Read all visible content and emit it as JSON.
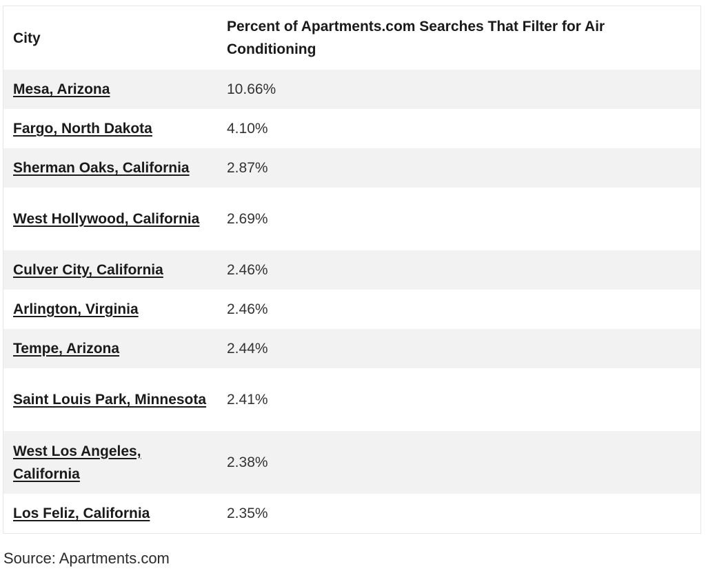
{
  "table": {
    "headers": [
      "City",
      "Percent of Apartments.com Searches That Filter for Air Conditioning"
    ],
    "rows": [
      {
        "city": "Mesa, Arizona",
        "percent": "10.66%"
      },
      {
        "city": "Fargo, North Dakota",
        "percent": "4.10%"
      },
      {
        "city": "Sherman Oaks, California",
        "percent": "2.87%"
      },
      {
        "city": "West Hollywood, California",
        "percent": "2.69%"
      },
      {
        "city": "Culver City, California",
        "percent": "2.46%"
      },
      {
        "city": "Arlington, Virginia",
        "percent": "2.46%"
      },
      {
        "city": "Tempe, Arizona",
        "percent": "2.44%"
      },
      {
        "city": "Saint Louis Park, Minnesota",
        "percent": "2.41%"
      },
      {
        "city": "West Los Angeles, California",
        "percent": "2.38%"
      },
      {
        "city": "Los Feliz, California",
        "percent": "2.35%"
      }
    ]
  },
  "source": "Source: Apartments.com"
}
